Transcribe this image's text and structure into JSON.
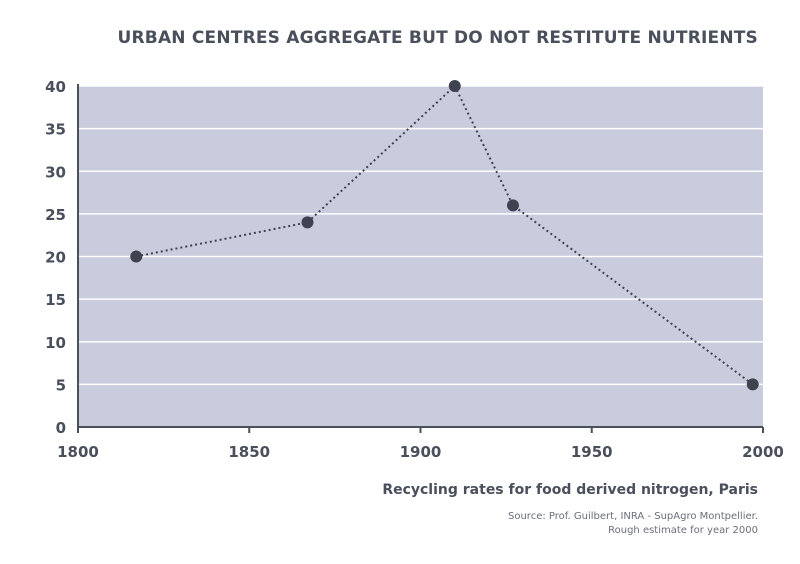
{
  "chart_data": {
    "type": "line",
    "title": "URBAN CENTRES AGGREGATE BUT DO NOT RESTITUTE NUTRIENTS",
    "subtitle": "Recycling rates for food derived nitrogen, Paris",
    "source_lines": [
      "Source: Prof. Guilbert, INRA - SupAgro Montpellier.",
      "Rough estimate for year 2000"
    ],
    "xlabel": "",
    "ylabel": "",
    "xlim": [
      1800,
      2000
    ],
    "ylim": [
      0,
      40
    ],
    "x_ticks": [
      1800,
      1850,
      1900,
      1950,
      2000
    ],
    "y_ticks": [
      0,
      5,
      10,
      15,
      20,
      25,
      30,
      35,
      40
    ],
    "grid": true,
    "series": [
      {
        "x": [
          1817,
          1867,
          1910,
          1927,
          1997
        ],
        "values": [
          20,
          24,
          40,
          26,
          5
        ]
      }
    ],
    "colors": {
      "plot_bg": "#c9ccdc",
      "grid": "#ffffff",
      "line": "#3f4350",
      "axis": "#4a4f5c"
    }
  }
}
